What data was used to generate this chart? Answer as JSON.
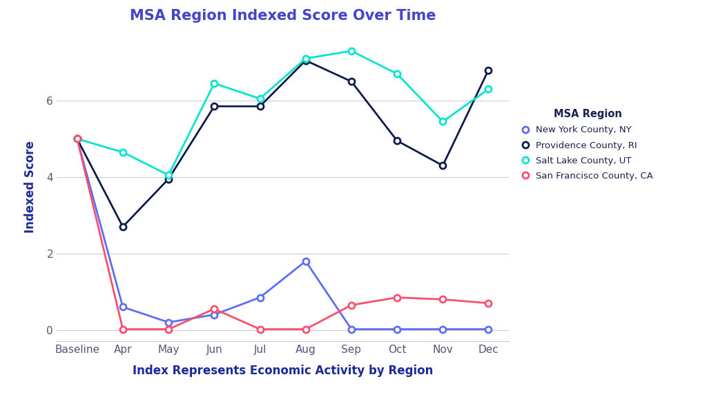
{
  "title": "MSA Region Indexed Score Over Time",
  "xlabel": "Index Represents Economic Activity by Region",
  "ylabel": "Indexed Score",
  "legend_title": "MSA Region",
  "x_labels": [
    "Baseline",
    "Apr",
    "May",
    "Jun",
    "Jul",
    "Aug",
    "Sep",
    "Oct",
    "Nov",
    "Dec"
  ],
  "series": [
    {
      "name": "New York County, NY",
      "color": "#5b6ef5",
      "marker_facecolor": "white",
      "marker_edgecolor": "#5b6ef5",
      "values": [
        5.0,
        0.6,
        0.2,
        0.4,
        0.85,
        1.8,
        0.02,
        0.02,
        0.02,
        0.02
      ]
    },
    {
      "name": "Providence County, RI",
      "color": "#0d1b4b",
      "marker_facecolor": "white",
      "marker_edgecolor": "#0d1b4b",
      "values": [
        5.0,
        2.7,
        3.95,
        5.85,
        5.85,
        7.05,
        6.5,
        4.95,
        4.3,
        6.8
      ]
    },
    {
      "name": "Salt Lake County, UT",
      "color": "#00e5cc",
      "marker_facecolor": "white",
      "marker_edgecolor": "#00e5cc",
      "values": [
        5.0,
        4.65,
        4.05,
        6.45,
        6.05,
        7.1,
        7.3,
        6.7,
        5.45,
        6.3
      ]
    },
    {
      "name": "San Francisco County, CA",
      "color": "#ff4d6d",
      "marker_facecolor": "white",
      "marker_edgecolor": "#ff4d6d",
      "values": [
        5.0,
        0.02,
        0.02,
        0.55,
        0.02,
        0.02,
        0.65,
        0.85,
        0.8,
        0.7
      ]
    }
  ],
  "ylim": [
    -0.3,
    7.8
  ],
  "yticks": [
    0,
    2,
    4,
    6
  ],
  "background_color": "#ffffff",
  "grid_color": "#cccccc",
  "title_color": "#4444cc",
  "axis_label_color": "#1a2a99",
  "tick_label_color": "#555577",
  "legend_title_color": "#1a2050",
  "legend_text_color": "#1a2050"
}
